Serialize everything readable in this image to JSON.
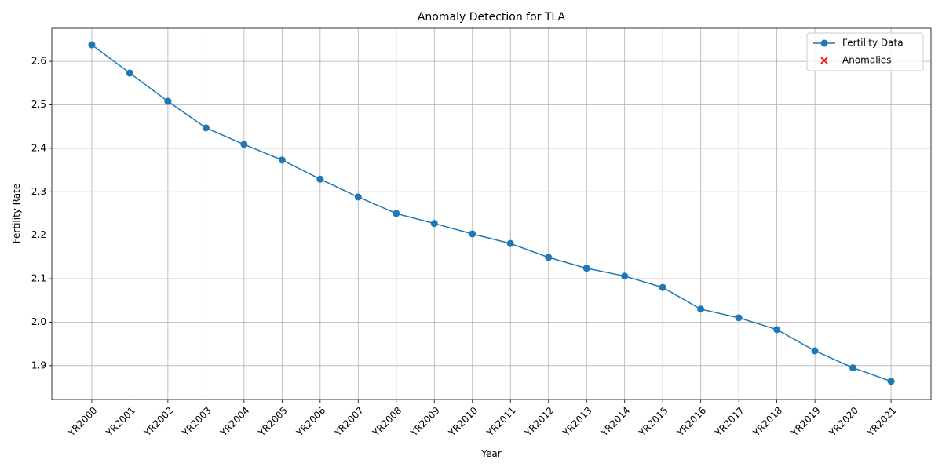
{
  "chart_data": {
    "type": "line",
    "title": "Anomaly Detection for TLA",
    "x_label": "Year",
    "y_label": "Fertility Rate",
    "categories": [
      "YR2000",
      "YR2001",
      "YR2002",
      "YR2003",
      "YR2004",
      "YR2005",
      "YR2006",
      "YR2007",
      "YR2008",
      "YR2009",
      "YR2010",
      "YR2011",
      "YR2012",
      "YR2013",
      "YR2014",
      "YR2015",
      "YR2016",
      "YR2017",
      "YR2018",
      "YR2019",
      "YR2020",
      "YR2021"
    ],
    "series": [
      {
        "name": "Fertility Data",
        "color": "#1f77b4",
        "marker": "circle",
        "values": [
          2.638,
          2.573,
          2.508,
          2.447,
          2.409,
          2.373,
          2.329,
          2.288,
          2.25,
          2.227,
          2.203,
          2.181,
          2.149,
          2.124,
          2.106,
          2.08,
          2.03,
          2.01,
          1.983,
          1.934,
          1.895,
          1.864
        ]
      },
      {
        "name": "Anomalies",
        "color": "#ff0000",
        "marker": "x",
        "values": [
          null,
          null,
          null,
          null,
          null,
          null,
          null,
          null,
          null,
          null,
          null,
          null,
          null,
          null,
          null,
          null,
          null,
          null,
          null,
          null,
          null,
          null
        ]
      }
    ],
    "ylim": [
      1.822,
      2.676
    ],
    "yticks": [
      1.9,
      {
        "value": 2,
        "label": "2.0"
      },
      2.1,
      2.2,
      2.3,
      2.4,
      2.5,
      2.6
    ],
    "grid": true,
    "legend": "upper right"
  }
}
